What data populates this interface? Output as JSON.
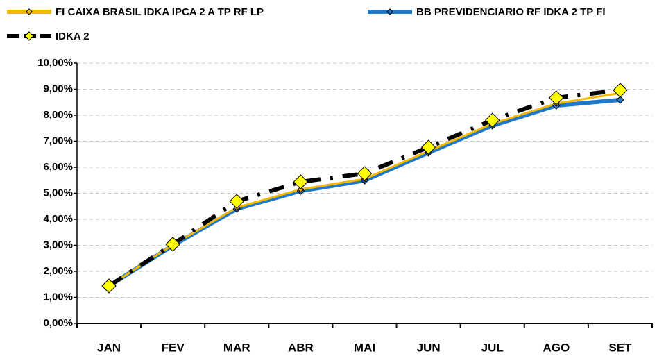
{
  "chart_data": {
    "type": "line",
    "categories": [
      "JAN",
      "FEV",
      "MAR",
      "ABR",
      "MAI",
      "JUN",
      "JUL",
      "AGO",
      "SET"
    ],
    "series": [
      {
        "name": "FI CAIXA BRASIL IDKA IPCA 2 A TP RF LP",
        "color": "#f5b800",
        "values": [
          1.44,
          3.02,
          4.45,
          5.15,
          5.55,
          6.62,
          7.67,
          8.45,
          8.85
        ]
      },
      {
        "name": "BB PREVIDENCIARIO RF IDKA 2 TP FI",
        "color": "#1f78c8",
        "values": [
          1.44,
          2.99,
          4.4,
          5.09,
          5.49,
          6.56,
          7.6,
          8.37,
          8.59
        ]
      },
      {
        "name": "IDKA 2",
        "color": "#000000",
        "marker_color": "#ffff00",
        "values": [
          1.44,
          3.04,
          4.69,
          5.44,
          5.76,
          6.77,
          7.81,
          8.67,
          8.96
        ]
      }
    ],
    "ylim": [
      0,
      10
    ],
    "yticks": [
      {
        "value": 0,
        "label": "0,00%"
      },
      {
        "value": 1,
        "label": "1,00%"
      },
      {
        "value": 2,
        "label": "2,00%"
      },
      {
        "value": 3,
        "label": "3,00%"
      },
      {
        "value": 4,
        "label": "4,00%"
      },
      {
        "value": 5,
        "label": "5,00%"
      },
      {
        "value": 6,
        "label": "6,00%"
      },
      {
        "value": 7,
        "label": "7,00%"
      },
      {
        "value": 8,
        "label": "8,00%"
      },
      {
        "value": 9,
        "label": "9,00%"
      },
      {
        "value": 10,
        "label": "10,00%"
      }
    ],
    "grid": true
  }
}
